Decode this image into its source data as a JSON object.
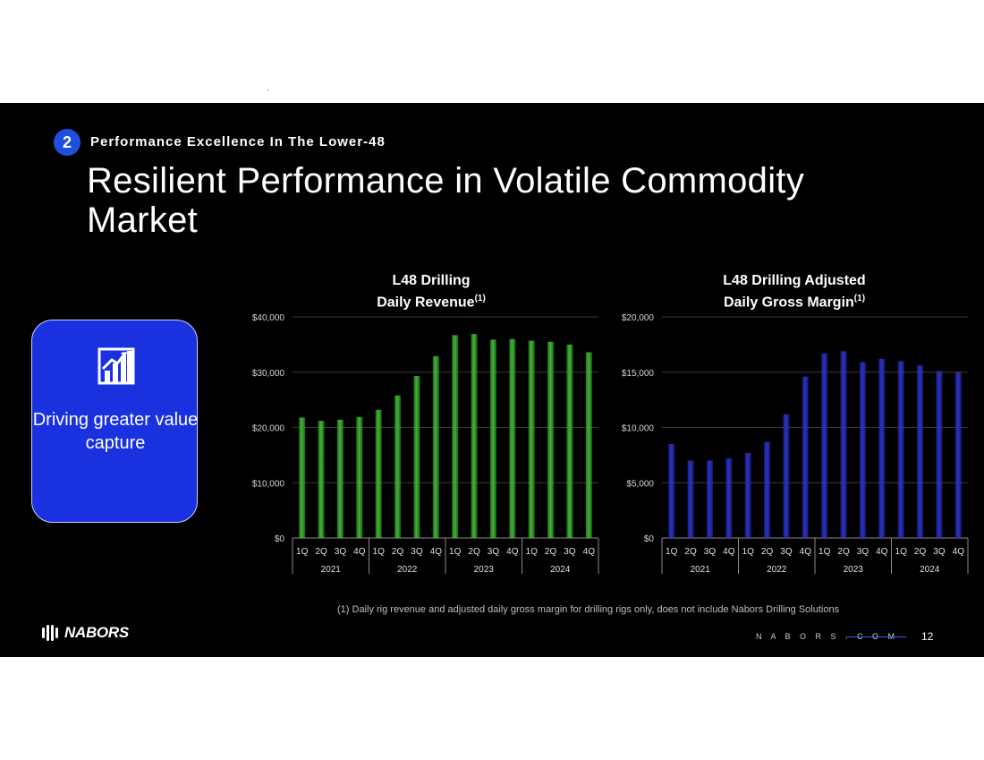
{
  "section": {
    "number": "2",
    "title": "Performance Excellence In The Lower-48"
  },
  "headline": "Resilient Performance in Volatile Commodity Market",
  "callout": {
    "icon": "bar-chart-growth-icon",
    "text": "Driving greater value capture"
  },
  "chart_data": [
    {
      "type": "bar",
      "title_line1": "L48 Drilling",
      "title_line2": "Daily Revenue",
      "title_sup": "(1)",
      "color": "#3fb634",
      "quarters": [
        "1Q",
        "2Q",
        "3Q",
        "4Q",
        "1Q",
        "2Q",
        "3Q",
        "4Q",
        "1Q",
        "2Q",
        "3Q",
        "4Q",
        "1Q",
        "2Q",
        "3Q",
        "4Q"
      ],
      "years": [
        "2021",
        "2022",
        "2023",
        "2024"
      ],
      "values": [
        21800,
        21200,
        21400,
        21900,
        23200,
        25800,
        29300,
        32900,
        36700,
        36900,
        35900,
        36000,
        35700,
        35500,
        35000,
        33600
      ],
      "ylim": [
        0,
        40000
      ],
      "yticks": [
        "$0",
        "$10,000",
        "$20,000",
        "$30,000",
        "$40,000"
      ]
    },
    {
      "type": "bar",
      "title_line1": "L48 Drilling Adjusted",
      "title_line2": "Daily Gross Margin",
      "title_sup": "(1)",
      "color": "#2b31c8",
      "quarters": [
        "1Q",
        "2Q",
        "3Q",
        "4Q",
        "1Q",
        "2Q",
        "3Q",
        "4Q",
        "1Q",
        "2Q",
        "3Q",
        "4Q",
        "1Q",
        "2Q",
        "3Q",
        "4Q"
      ],
      "years": [
        "2021",
        "2022",
        "2023",
        "2024"
      ],
      "values": [
        8500,
        7000,
        7000,
        7200,
        7700,
        8700,
        11200,
        14600,
        16700,
        16900,
        15900,
        16200,
        16000,
        15600,
        15100,
        15000
      ],
      "ylim": [
        0,
        20000
      ],
      "yticks": [
        "$0",
        "$5,000",
        "$10,000",
        "$15,000",
        "$20,000"
      ]
    }
  ],
  "footnote": "(1)   Daily rig revenue and adjusted daily gross margin for drilling rigs only, does not include Nabors Drilling Solutions",
  "footer": {
    "logo": "NABORS",
    "url": "N A B O R S . C O M",
    "page": "12"
  }
}
